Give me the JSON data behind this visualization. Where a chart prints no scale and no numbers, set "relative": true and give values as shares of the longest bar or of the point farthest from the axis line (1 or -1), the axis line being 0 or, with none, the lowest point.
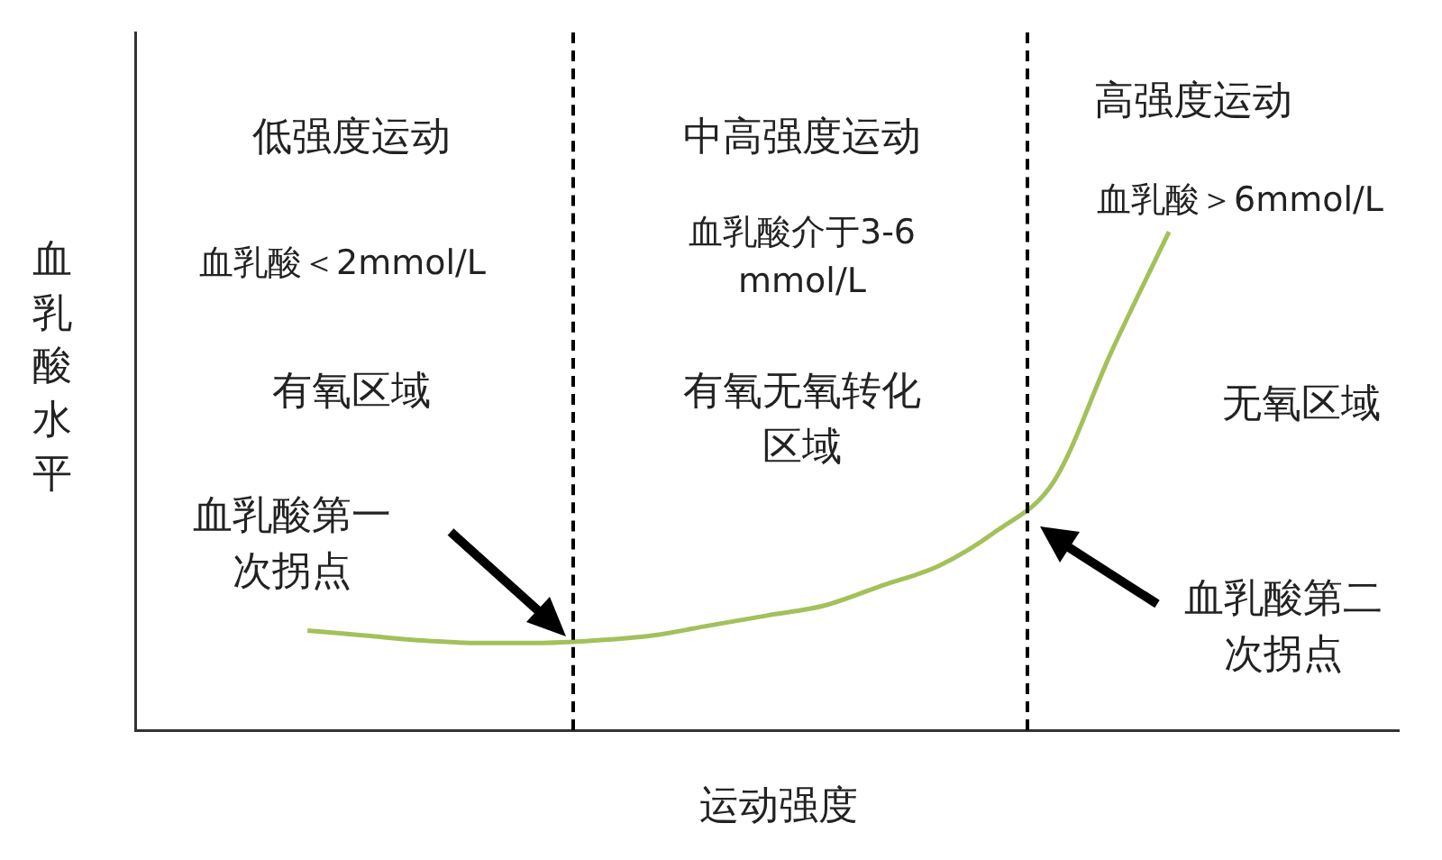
{
  "chart_data": {
    "type": "line",
    "relative": true,
    "xlabel": "运动强度",
    "ylabel": "血乳酸水平",
    "legend": false,
    "marker": "none",
    "line_style": "solid",
    "categories": [
      null,
      null,
      null,
      null,
      null,
      null,
      null,
      null,
      null,
      null,
      null,
      null,
      null,
      null,
      null,
      null,
      null,
      null,
      null,
      null,
      null,
      null,
      null
    ],
    "series": [
      {
        "color": "#a3c15a",
        "values": [
          null,
          null,
          null,
          0.2,
          0.19,
          0.18,
          0.175,
          0.175,
          0.18,
          0.19,
          0.21,
          0.23,
          0.25,
          0.29,
          0.33,
          0.4,
          0.5,
          0.76,
          1.0,
          null,
          null,
          null,
          null
        ]
      }
    ],
    "annotations": [
      "低强度运动",
      "中高强度运动",
      "高强度运动",
      "血乳酸＜2mmol/L",
      "血乳酸介于3-6 mmol/L",
      "血乳酸＞6mmol/L",
      "有氧区域",
      "有氧无氧转化区域",
      "无氧区域",
      "血乳酸第一次拐点",
      "血乳酸第二次拐点"
    ]
  }
}
